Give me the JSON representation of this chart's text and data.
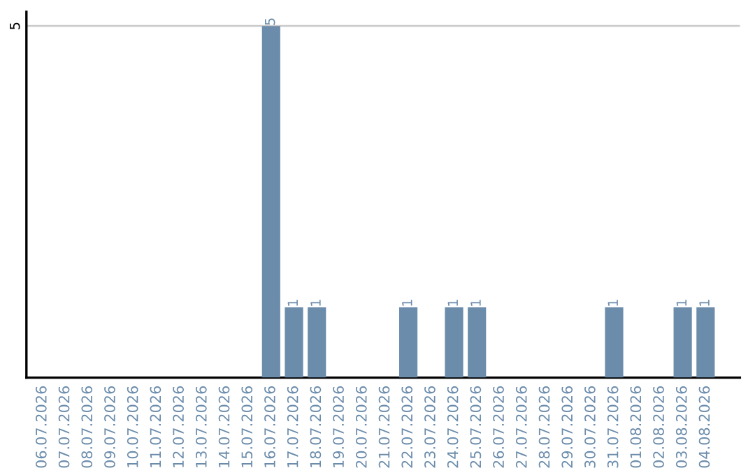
{
  "chart_data": {
    "type": "bar",
    "categories": [
      "06.07.2026",
      "07.07.2026",
      "08.07.2026",
      "09.07.2026",
      "10.07.2026",
      "11.07.2026",
      "12.07.2026",
      "13.07.2026",
      "14.07.2026",
      "15.07.2026",
      "16.07.2026",
      "17.07.2026",
      "18.07.2026",
      "19.07.2026",
      "20.07.2026",
      "21.07.2026",
      "22.07.2026",
      "23.07.2026",
      "24.07.2026",
      "25.07.2026",
      "26.07.2026",
      "27.07.2026",
      "28.07.2026",
      "29.07.2026",
      "30.07.2026",
      "31.07.2026",
      "01.08.2026",
      "02.08.2026",
      "03.08.2026",
      "04.08.2026"
    ],
    "values": [
      0,
      0,
      0,
      0,
      0,
      0,
      0,
      0,
      0,
      0,
      5,
      1,
      1,
      0,
      0,
      0,
      1,
      0,
      1,
      1,
      0,
      0,
      0,
      0,
      0,
      1,
      0,
      0,
      1,
      1
    ],
    "value_labels": [
      null,
      null,
      null,
      null,
      null,
      null,
      null,
      null,
      null,
      null,
      "5",
      "1",
      "1",
      null,
      null,
      null,
      "1",
      null,
      "1",
      "1",
      null,
      null,
      null,
      null,
      null,
      "1",
      null,
      null,
      "1",
      "1"
    ],
    "color": "#6b8cab",
    "ylim": [
      0,
      5.2
    ],
    "yticks": [
      5
    ],
    "grid": "y"
  }
}
